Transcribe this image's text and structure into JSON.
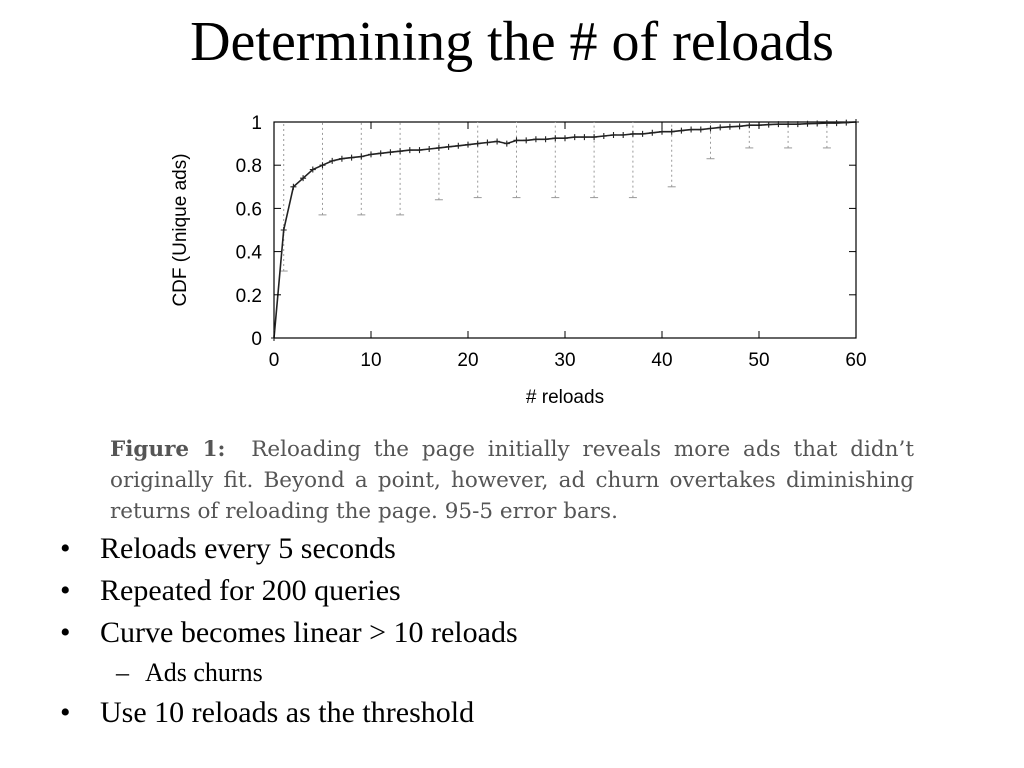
{
  "slide": {
    "title": "Determining the # of reloads"
  },
  "figure": {
    "label": "Figure 1:",
    "caption": "Reloading the page initially reveals more ads that didn’t originally fit. Beyond a point, however, ad churn overtakes diminishing returns of reloading the page. 95-5 error bars."
  },
  "bullets": [
    {
      "text": "Reloads every 5 seconds"
    },
    {
      "text": "Repeated for 200 queries"
    },
    {
      "text": "Curve becomes linear > 10 reloads"
    },
    {
      "text": "Ads churns"
    },
    {
      "text": "Use 10 reloads as the threshold"
    }
  ],
  "chart_data": {
    "type": "line",
    "title": "",
    "xlabel": "# reloads",
    "ylabel": "CDF (Unique ads)",
    "xlim": [
      0,
      60
    ],
    "ylim": [
      0,
      1
    ],
    "xticks": [
      0,
      10,
      20,
      30,
      40,
      50,
      60
    ],
    "yticks": [
      0,
      0.2,
      0.4,
      0.6,
      0.8,
      1
    ],
    "ytick_labels": [
      "0",
      "0.2",
      "0.4",
      "0.6",
      "0.8",
      "1"
    ],
    "grid": false,
    "x": [
      0,
      1,
      2,
      3,
      4,
      5,
      6,
      7,
      8,
      9,
      10,
      11,
      12,
      13,
      14,
      15,
      16,
      17,
      18,
      19,
      20,
      21,
      22,
      23,
      24,
      25,
      26,
      27,
      28,
      29,
      30,
      31,
      32,
      33,
      34,
      35,
      36,
      37,
      38,
      39,
      40,
      41,
      42,
      43,
      44,
      45,
      46,
      47,
      48,
      49,
      50,
      51,
      52,
      53,
      54,
      55,
      56,
      57,
      58,
      59,
      60
    ],
    "y": [
      0,
      0.5,
      0.7,
      0.74,
      0.78,
      0.8,
      0.82,
      0.83,
      0.835,
      0.84,
      0.85,
      0.855,
      0.86,
      0.865,
      0.87,
      0.87,
      0.875,
      0.88,
      0.885,
      0.89,
      0.895,
      0.9,
      0.905,
      0.91,
      0.9,
      0.915,
      0.915,
      0.92,
      0.92,
      0.925,
      0.925,
      0.93,
      0.93,
      0.93,
      0.935,
      0.94,
      0.94,
      0.945,
      0.945,
      0.95,
      0.955,
      0.955,
      0.96,
      0.965,
      0.965,
      0.97,
      0.975,
      0.978,
      0.98,
      0.985,
      0.985,
      0.988,
      0.99,
      0.99,
      0.99,
      0.992,
      0.993,
      0.995,
      0.995,
      0.997,
      1
    ],
    "error_bars": [
      {
        "x": 1,
        "low": 0.31,
        "high": 1
      },
      {
        "x": 5,
        "low": 0.57,
        "high": 1
      },
      {
        "x": 9,
        "low": 0.57,
        "high": 1
      },
      {
        "x": 13,
        "low": 0.57,
        "high": 1
      },
      {
        "x": 17,
        "low": 0.64,
        "high": 1
      },
      {
        "x": 21,
        "low": 0.65,
        "high": 1
      },
      {
        "x": 25,
        "low": 0.65,
        "high": 1
      },
      {
        "x": 29,
        "low": 0.65,
        "high": 1
      },
      {
        "x": 33,
        "low": 0.65,
        "high": 1
      },
      {
        "x": 37,
        "low": 0.65,
        "high": 1
      },
      {
        "x": 41,
        "low": 0.7,
        "high": 1
      },
      {
        "x": 45,
        "low": 0.83,
        "high": 1
      },
      {
        "x": 49,
        "low": 0.88,
        "high": 1
      },
      {
        "x": 53,
        "low": 0.88,
        "high": 1
      },
      {
        "x": 57,
        "low": 0.88,
        "high": 1
      }
    ],
    "colors": {
      "line": "#222222",
      "error_bar": "#9a9a9a",
      "axis": "#000000"
    }
  }
}
